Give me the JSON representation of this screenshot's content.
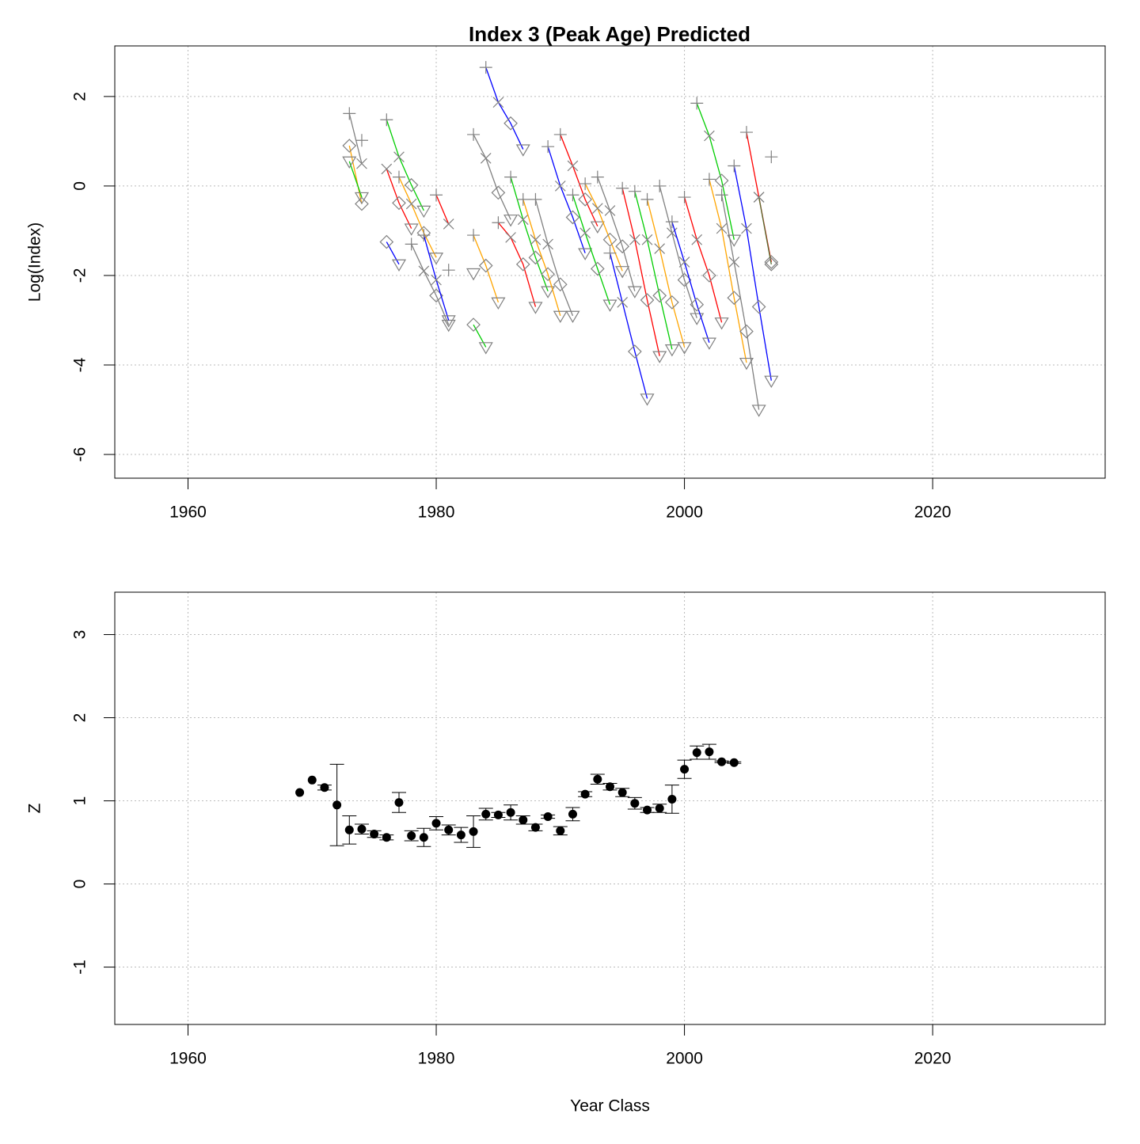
{
  "chart_data": [
    {
      "type": "line",
      "title": "Index 3 (Peak Age) Predicted",
      "y_label": "Log(Index)",
      "xlim": [
        1954.1,
        2033.9
      ],
      "ylim": [
        -6.53,
        3.13
      ],
      "xticks": [
        1960,
        1980,
        2000,
        2020
      ],
      "yticks": [
        -6,
        -4,
        -2,
        0,
        2
      ],
      "grid": true,
      "marker_color": "#808080",
      "series": [
        {
          "color": "#808080",
          "x": [
            1973,
            1974
          ],
          "values": [
            1.62,
            0.5
          ],
          "markers": [
            "plus",
            "cross"
          ]
        },
        {
          "color": "#ffa500",
          "x": [
            1973,
            1974
          ],
          "values": [
            0.9,
            -0.4
          ],
          "markers": [
            "diamond",
            "diamond"
          ]
        },
        {
          "color": "#00cd00",
          "x": [
            1973,
            1974
          ],
          "values": [
            0.55,
            -0.25
          ],
          "markers": [
            "triangle",
            "triangle"
          ]
        },
        {
          "color": "#808080",
          "x": [
            1974
          ],
          "values": [
            1.02
          ],
          "markers": [
            "plus"
          ]
        },
        {
          "color": "#ff0000",
          "x": [
            1976,
            1977,
            1978
          ],
          "values": [
            0.38,
            -0.38,
            -0.95
          ],
          "markers": [
            "cross",
            "diamond",
            "triangle"
          ]
        },
        {
          "color": "#00cd00",
          "x": [
            1976,
            1977,
            1978,
            1979
          ],
          "values": [
            1.48,
            0.65,
            0.02,
            -0.55
          ],
          "markers": [
            "plus",
            "cross",
            "diamond",
            "triangle"
          ]
        },
        {
          "color": "#0000ff",
          "x": [
            1976,
            1977
          ],
          "values": [
            -1.25,
            -1.75
          ],
          "markers": [
            "diamond",
            "triangle"
          ]
        },
        {
          "color": "#ffa500",
          "x": [
            1977,
            1978,
            1979,
            1980
          ],
          "values": [
            0.2,
            -0.4,
            -1.05,
            -1.6
          ],
          "markers": [
            "plus",
            "cross",
            "diamond",
            "triangle"
          ]
        },
        {
          "color": "#808080",
          "x": [
            1978,
            1979,
            1980,
            1981
          ],
          "values": [
            -1.3,
            -1.9,
            -2.45,
            -3.1
          ],
          "markers": [
            "plus",
            "cross",
            "diamond",
            "triangle"
          ]
        },
        {
          "color": "#0000ff",
          "x": [
            1979,
            1980,
            1981
          ],
          "values": [
            -1.1,
            -2.1,
            -3.0
          ],
          "markers": [
            "plus",
            "cross",
            "triangle"
          ]
        },
        {
          "color": "#ff0000",
          "x": [
            1980,
            1981
          ],
          "values": [
            -0.2,
            -0.85
          ],
          "markers": [
            "plus",
            "cross"
          ]
        },
        {
          "color": "#808080",
          "x": [
            1981
          ],
          "values": [
            -1.88
          ],
          "markers": [
            "plus"
          ]
        },
        {
          "color": "#808080",
          "x": [
            1983
          ],
          "values": [
            -1.95
          ],
          "markers": [
            "triangle"
          ]
        },
        {
          "color": "#ffa500",
          "x": [
            1983,
            1984,
            1985
          ],
          "values": [
            -1.1,
            -1.78,
            -2.6
          ],
          "markers": [
            "plus",
            "diamond",
            "triangle"
          ]
        },
        {
          "color": "#00cd00",
          "x": [
            1983,
            1984
          ],
          "values": [
            -3.1,
            -3.6
          ],
          "markers": [
            "diamond",
            "triangle"
          ]
        },
        {
          "color": "#808080",
          "x": [
            1983,
            1984,
            1985,
            1986
          ],
          "values": [
            1.15,
            0.62,
            -0.15,
            -0.75
          ],
          "markers": [
            "plus",
            "cross",
            "diamond",
            "triangle"
          ]
        },
        {
          "color": "#0000ff",
          "x": [
            1984,
            1985,
            1986,
            1987
          ],
          "values": [
            2.65,
            1.87,
            1.4,
            0.82
          ],
          "markers": [
            "plus",
            "cross",
            "diamond",
            "triangle"
          ]
        },
        {
          "color": "#ff0000",
          "x": [
            1985,
            1986,
            1987,
            1988
          ],
          "values": [
            -0.82,
            -1.15,
            -1.75,
            -2.7
          ],
          "markers": [
            "plus",
            "cross",
            "diamond",
            "triangle"
          ]
        },
        {
          "color": "#00cd00",
          "x": [
            1986,
            1987,
            1988,
            1989
          ],
          "values": [
            0.2,
            -0.75,
            -1.6,
            -2.35
          ],
          "markers": [
            "plus",
            "cross",
            "diamond",
            "triangle"
          ]
        },
        {
          "color": "#ffa500",
          "x": [
            1987,
            1988,
            1989,
            1990
          ],
          "values": [
            -0.3,
            -1.2,
            -1.97,
            -2.9
          ],
          "markers": [
            "plus",
            "cross",
            "diamond",
            "triangle"
          ]
        },
        {
          "color": "#808080",
          "x": [
            1988,
            1989,
            1990,
            1991
          ],
          "values": [
            -0.3,
            -1.3,
            -2.2,
            -2.9
          ],
          "markers": [
            "plus",
            "cross",
            "diamond",
            "triangle"
          ]
        },
        {
          "color": "#0000ff",
          "x": [
            1989,
            1990,
            1991,
            1992
          ],
          "values": [
            0.88,
            0.0,
            -0.7,
            -1.5
          ],
          "markers": [
            "plus",
            "cross",
            "diamond",
            "triangle"
          ]
        },
        {
          "color": "#ff0000",
          "x": [
            1990,
            1991,
            1992,
            1993
          ],
          "values": [
            1.15,
            0.45,
            -0.3,
            -0.9
          ],
          "markers": [
            "plus",
            "cross",
            "diamond",
            "triangle"
          ]
        },
        {
          "color": "#00cd00",
          "x": [
            1991,
            1992,
            1993,
            1994
          ],
          "values": [
            -0.2,
            -1.05,
            -1.85,
            -2.65
          ],
          "markers": [
            "plus",
            "cross",
            "diamond",
            "triangle"
          ]
        },
        {
          "color": "#ffa500",
          "x": [
            1992,
            1993,
            1994,
            1995
          ],
          "values": [
            0.05,
            -0.5,
            -1.2,
            -1.9
          ],
          "markers": [
            "plus",
            "cross",
            "diamond",
            "triangle"
          ]
        },
        {
          "color": "#808080",
          "x": [
            1993,
            1994,
            1995,
            1996
          ],
          "values": [
            0.2,
            -0.55,
            -1.35,
            -2.35
          ],
          "markers": [
            "plus",
            "cross",
            "diamond",
            "triangle"
          ]
        },
        {
          "color": "#0000ff",
          "x": [
            1994,
            1995,
            1996,
            1997
          ],
          "values": [
            -1.5,
            -2.6,
            -3.7,
            -4.75
          ],
          "markers": [
            "plus",
            "cross",
            "diamond",
            "triangle"
          ]
        },
        {
          "color": "#ff0000",
          "x": [
            1995,
            1996,
            1997,
            1998
          ],
          "values": [
            -0.05,
            -1.2,
            -2.55,
            -3.8
          ],
          "markers": [
            "plus",
            "cross",
            "diamond",
            "triangle"
          ]
        },
        {
          "color": "#00cd00",
          "x": [
            1996,
            1997,
            1998,
            1999
          ],
          "values": [
            -0.12,
            -1.2,
            -2.45,
            -3.65
          ],
          "markers": [
            "plus",
            "cross",
            "diamond",
            "triangle"
          ]
        },
        {
          "color": "#ffa500",
          "x": [
            1997,
            1998,
            1999,
            2000
          ],
          "values": [
            -0.3,
            -1.4,
            -2.6,
            -3.6
          ],
          "markers": [
            "plus",
            "cross",
            "diamond",
            "triangle"
          ]
        },
        {
          "color": "#808080",
          "x": [
            1998,
            1999,
            2000,
            2001
          ],
          "values": [
            0.0,
            -1.05,
            -2.1,
            -2.95
          ],
          "markers": [
            "plus",
            "cross",
            "diamond",
            "triangle"
          ]
        },
        {
          "color": "#0000ff",
          "x": [
            1999,
            2000,
            2001,
            2002
          ],
          "values": [
            -0.8,
            -1.7,
            -2.65,
            -3.5
          ],
          "markers": [
            "plus",
            "cross",
            "diamond",
            "triangle"
          ]
        },
        {
          "color": "#ff0000",
          "x": [
            2000,
            2001,
            2002,
            2003
          ],
          "values": [
            -0.25,
            -1.2,
            -2.0,
            -3.05
          ],
          "markers": [
            "plus",
            "cross",
            "diamond",
            "triangle"
          ]
        },
        {
          "color": "#00cd00",
          "x": [
            2001,
            2002,
            2003,
            2004
          ],
          "values": [
            1.85,
            1.12,
            0.12,
            -1.2
          ],
          "markers": [
            "plus",
            "cross",
            "diamond",
            "triangle"
          ]
        },
        {
          "color": "#ffa500",
          "x": [
            2002,
            2003,
            2004,
            2005
          ],
          "values": [
            0.15,
            -0.95,
            -2.5,
            -3.95
          ],
          "markers": [
            "plus",
            "cross",
            "diamond",
            "triangle"
          ]
        },
        {
          "color": "#808080",
          "x": [
            2003,
            2004,
            2005,
            2006
          ],
          "values": [
            -0.2,
            -1.7,
            -3.25,
            -5.0
          ],
          "markers": [
            "plus",
            "cross",
            "diamond",
            "triangle"
          ]
        },
        {
          "color": "#0000ff",
          "x": [
            2004,
            2005,
            2006,
            2007
          ],
          "values": [
            0.45,
            -0.95,
            -2.7,
            -4.35
          ],
          "markers": [
            "plus",
            "cross",
            "diamond",
            "triangle"
          ]
        },
        {
          "color": "#ff0000",
          "x": [
            2005,
            2006,
            2007
          ],
          "values": [
            1.2,
            -0.25,
            -1.7
          ],
          "markers": [
            "plus",
            "cross",
            "diamond"
          ]
        },
        {
          "color": "#556b2f",
          "x": [
            2006,
            2007
          ],
          "values": [
            -0.25,
            -1.75
          ],
          "markers": [
            "cross",
            "diamond"
          ]
        },
        {
          "color": "#808080",
          "x": [
            2007
          ],
          "values": [
            0.65
          ],
          "markers": [
            "plus"
          ]
        }
      ]
    },
    {
      "type": "scatter",
      "x_label": "Year Class",
      "y_label": "Z",
      "color": "#000000",
      "xlim": [
        1954.1,
        2033.9
      ],
      "ylim": [
        -1.69,
        3.51
      ],
      "xticks": [
        1960,
        1980,
        2000,
        2020
      ],
      "yticks": [
        -1,
        0,
        1,
        2,
        3
      ],
      "grid": true,
      "x": [
        1969,
        1970,
        1971,
        1972,
        1973,
        1974,
        1975,
        1976,
        1977,
        1978,
        1979,
        1980,
        1981,
        1982,
        1983,
        1984,
        1985,
        1986,
        1987,
        1988,
        1989,
        1990,
        1991,
        1992,
        1993,
        1994,
        1995,
        1996,
        1997,
        1998,
        1999,
        2000,
        2001,
        2002,
        2003,
        2004
      ],
      "values": [
        1.1,
        1.25,
        1.16,
        0.95,
        0.65,
        0.66,
        0.6,
        0.56,
        0.98,
        0.58,
        0.56,
        0.73,
        0.65,
        0.59,
        0.63,
        0.84,
        0.83,
        0.86,
        0.77,
        0.68,
        0.81,
        0.64,
        0.84,
        1.08,
        1.26,
        1.17,
        1.1,
        0.97,
        0.89,
        0.91,
        1.02,
        1.38,
        1.58,
        1.59,
        1.47,
        1.46
      ],
      "errors": [
        null,
        null,
        0.03,
        0.49,
        0.17,
        0.06,
        0.04,
        0.03,
        0.12,
        0.06,
        0.11,
        0.08,
        0.06,
        0.09,
        0.19,
        0.07,
        0.03,
        0.09,
        0.05,
        0.04,
        0.02,
        0.05,
        0.08,
        0.03,
        0.06,
        0.04,
        0.05,
        0.07,
        0.03,
        0.05,
        0.17,
        0.11,
        0.08,
        0.09,
        0.01,
        0.01
      ]
    }
  ]
}
